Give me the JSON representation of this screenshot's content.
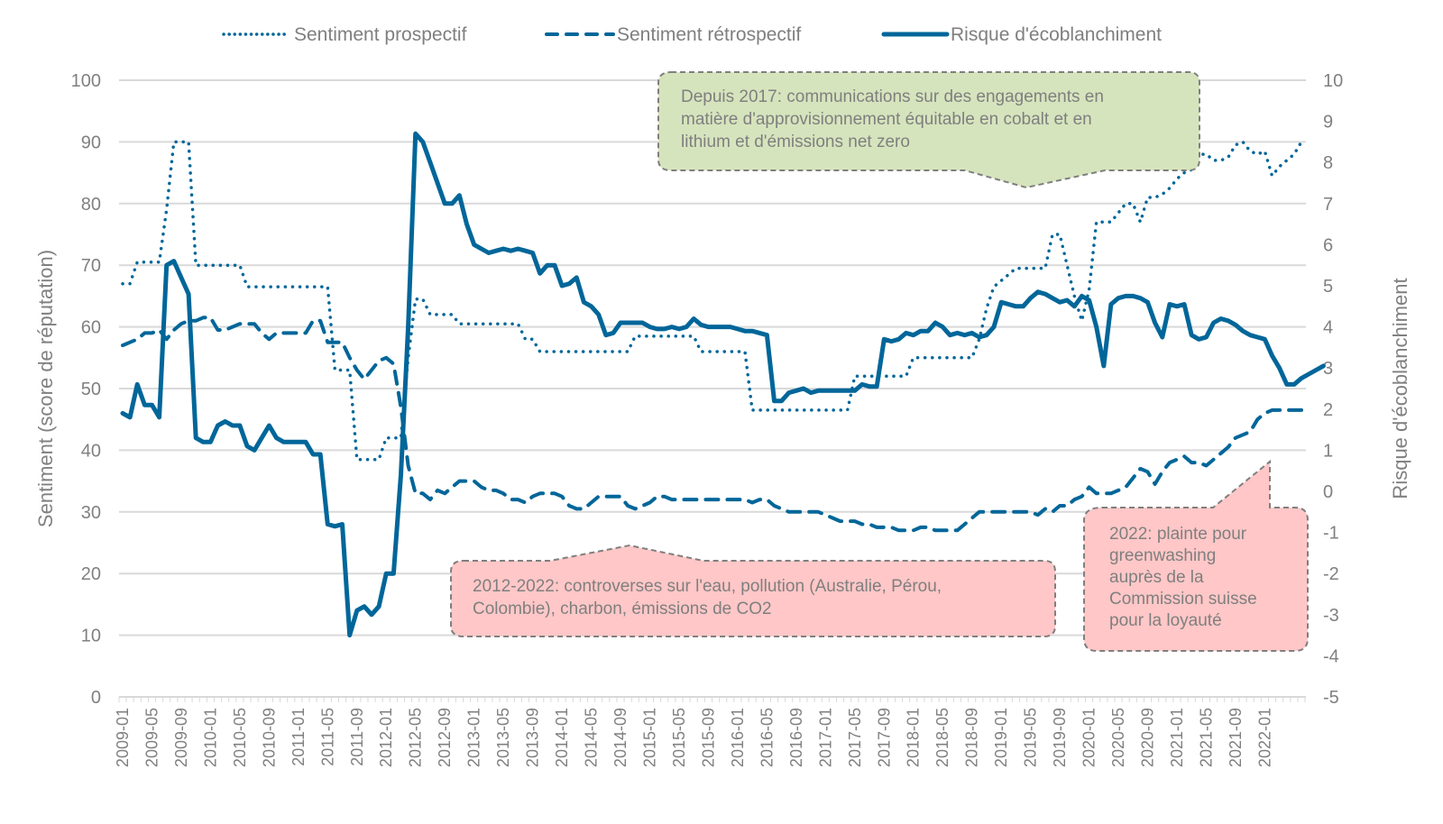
{
  "chart_data": {
    "type": "line",
    "title": "",
    "xlabel": "",
    "ylabel_left": "Sentiment (score de réputation)",
    "ylabel_right": "Risque d'écoblanchiment",
    "ylim_left": [
      0,
      100
    ],
    "ylim_right": [
      -5,
      10
    ],
    "yticks_left": [
      0,
      10,
      20,
      30,
      40,
      50,
      60,
      70,
      80,
      90,
      100
    ],
    "yticks_right": [
      -5,
      -4,
      -3,
      -2,
      -1,
      0,
      1,
      2,
      3,
      4,
      5,
      6,
      7,
      8,
      9,
      10
    ],
    "grid": true,
    "legend_position": "top",
    "x_start": "2009-01",
    "x_end": "2022-05",
    "x_tick_labels": [
      "2009-01",
      "2009-05",
      "2009-09",
      "2010-01",
      "2010-05",
      "2010-09",
      "2011-01",
      "2011-05",
      "2011-09",
      "2012-01",
      "2012-05",
      "2012-09",
      "2013-01",
      "2013-05",
      "2013-09",
      "2014-01",
      "2014-05",
      "2014-09",
      "2015-01",
      "2015-05",
      "2015-09",
      "2016-01",
      "2016-05",
      "2016-09",
      "2017-01",
      "2017-05",
      "2017-09",
      "2018-01",
      "2018-05",
      "2018-09",
      "2019-01",
      "2019-05",
      "2019-09",
      "2020-01",
      "2020-05",
      "2020-09",
      "2021-01",
      "2021-05",
      "2021-09",
      "2022-01"
    ],
    "series": [
      {
        "name": "Sentiment prospectif",
        "axis": "left",
        "style": "dotted",
        "color": "#006699",
        "values": [
          67,
          67,
          70.5,
          70.5,
          70.5,
          70.5,
          79,
          90,
          90,
          90,
          70,
          70,
          70,
          70,
          70,
          70,
          70,
          66.5,
          66.5,
          66.5,
          66.5,
          66.5,
          66.5,
          66.5,
          66.5,
          66.5,
          66.5,
          66.5,
          66.5,
          53,
          53,
          53,
          38.5,
          38.5,
          38.5,
          38.5,
          42,
          42,
          42,
          55,
          64.5,
          64.5,
          62,
          62,
          62,
          62,
          60.5,
          60.5,
          60.5,
          60.5,
          60.5,
          60.5,
          60.5,
          60.5,
          60.5,
          58,
          58,
          56,
          56,
          56,
          56,
          56,
          56,
          56,
          56,
          56,
          56,
          56,
          56,
          56,
          58.5,
          58.5,
          58.5,
          58.5,
          58.5,
          58.5,
          58.5,
          58.5,
          58.5,
          56,
          56,
          56,
          56,
          56,
          56,
          56,
          46.5,
          46.5,
          46.5,
          46.5,
          46.5,
          46.5,
          46.5,
          46.5,
          46.5,
          46.5,
          46.5,
          46.5,
          46.5,
          46.5,
          52,
          52,
          52,
          52,
          52,
          52,
          52,
          52,
          55,
          55,
          55,
          55,
          55,
          55,
          55,
          55,
          55,
          58,
          63,
          66.5,
          67.5,
          68.5,
          69.5,
          69.5,
          69.5,
          69.5,
          69.5,
          75,
          75,
          70,
          65,
          61,
          66,
          77,
          77,
          77,
          78.5,
          80,
          80,
          77,
          81,
          81,
          81.5,
          82.5,
          84,
          85,
          85.5,
          88,
          88,
          87,
          87,
          87.5,
          89.5,
          90,
          88.5,
          88,
          88.5,
          84.5,
          86,
          87,
          88,
          90
        ]
      },
      {
        "name": "Sentiment rétrospectif",
        "axis": "left",
        "style": "dashed",
        "color": "#006699",
        "values": [
          57,
          57.5,
          58,
          59,
          59,
          59.5,
          58,
          59.5,
          60.5,
          61,
          61,
          61.5,
          61.5,
          59.5,
          59.5,
          60,
          60.5,
          60.5,
          60.5,
          59,
          58,
          59,
          59,
          59,
          59,
          59,
          61,
          61,
          57.5,
          57.5,
          57.5,
          55,
          53,
          51.5,
          53,
          54.5,
          55,
          54,
          47,
          37.5,
          33,
          33,
          32,
          33.5,
          33,
          34,
          35,
          35,
          35,
          34,
          33.5,
          33.5,
          33,
          32,
          32,
          31.5,
          32.5,
          33,
          33,
          33,
          32.5,
          31,
          30.5,
          30.5,
          31.5,
          32.5,
          32.5,
          32.5,
          32.5,
          31,
          30.5,
          31,
          31.5,
          32.5,
          32.5,
          32,
          32,
          32,
          32,
          32,
          32,
          32,
          32,
          32,
          32,
          32,
          31.5,
          32,
          32,
          31,
          30.5,
          30,
          30,
          30,
          30,
          30,
          29.5,
          29,
          28.5,
          28.5,
          28.5,
          28,
          28,
          27.5,
          27.5,
          27.5,
          27,
          27,
          27,
          27.5,
          27.5,
          27,
          27,
          27,
          27,
          28,
          29,
          30,
          30,
          30,
          30,
          30,
          30,
          30,
          30,
          29.5,
          30.5,
          30,
          31,
          31,
          32,
          32.5,
          34,
          33,
          33,
          33,
          33.5,
          34,
          35.5,
          37,
          36.5,
          34.5,
          36.5,
          38,
          38.5,
          39,
          38,
          38,
          37.5,
          38.5,
          39.5,
          40.5,
          42,
          42.5,
          43,
          45,
          46,
          46.5,
          46.5,
          46.5,
          46.5,
          46.5
        ]
      },
      {
        "name": "Risque d'écoblanchiment",
        "axis": "right",
        "style": "solid",
        "color": "#006699",
        "values": [
          1.9,
          1.8,
          2.6,
          2.1,
          2.1,
          1.8,
          5.5,
          5.6,
          5.2,
          4.8,
          1.3,
          1.2,
          1.2,
          1.6,
          1.7,
          1.6,
          1.6,
          1.1,
          1.0,
          1.3,
          1.6,
          1.3,
          1.2,
          1.2,
          1.2,
          1.2,
          0.9,
          0.9,
          -0.8,
          -0.85,
          -0.8,
          -3.5,
          -2.9,
          -2.8,
          -3.0,
          -2.8,
          -2.0,
          -2.0,
          0.4,
          4.0,
          8.7,
          8.5,
          8.0,
          7.5,
          7.0,
          7.0,
          7.2,
          6.5,
          6.0,
          5.9,
          5.8,
          5.85,
          5.9,
          5.85,
          5.9,
          5.85,
          5.8,
          5.3,
          5.5,
          5.5,
          5.0,
          5.05,
          5.2,
          4.6,
          4.5,
          4.3,
          3.8,
          3.85,
          4.1,
          4.1,
          4.1,
          4.1,
          4.0,
          3.95,
          3.95,
          4.0,
          3.95,
          4.0,
          4.2,
          4.05,
          4.0,
          4.0,
          4.0,
          4.0,
          3.95,
          3.9,
          3.9,
          3.85,
          3.8,
          2.2,
          2.2,
          2.4,
          2.45,
          2.5,
          2.4,
          2.45,
          2.45,
          2.45,
          2.45,
          2.45,
          2.45,
          2.6,
          2.55,
          2.55,
          3.7,
          3.65,
          3.7,
          3.85,
          3.8,
          3.9,
          3.9,
          4.1,
          4.0,
          3.8,
          3.85,
          3.8,
          3.85,
          3.75,
          3.8,
          4.0,
          4.6,
          4.55,
          4.5,
          4.5,
          4.7,
          4.85,
          4.8,
          4.7,
          4.6,
          4.65,
          4.5,
          4.75,
          4.65,
          4.0,
          3.05,
          4.55,
          4.7,
          4.75,
          4.75,
          4.7,
          4.6,
          4.1,
          3.75,
          4.55,
          4.5,
          4.55,
          3.8,
          3.7,
          3.75,
          4.1,
          4.2,
          4.15,
          4.05,
          3.9,
          3.8,
          3.75,
          3.7,
          3.3,
          3.0,
          2.6,
          2.6,
          2.75,
          2.85,
          2.95,
          3.05
        ]
      }
    ],
    "annotations": [
      {
        "id": "green",
        "lines": [
          "Depuis 2017: communications sur des engagements en",
          "matière d'approvisionnement équitable en cobalt et en",
          "lithium et d'émissions net zero"
        ],
        "fill": "#d6e4bd"
      },
      {
        "id": "pink-wide",
        "lines": [
          "2012-2022: controverses sur l'eau, pollution (Australie, Pérou,",
          "Colombie), charbon, émissions de CO2"
        ],
        "fill": "#ffc7c7"
      },
      {
        "id": "pink-narrow",
        "lines": [
          "2022: plainte pour",
          "greenwashing",
          "auprès de la",
          "Commission suisse",
          "pour la loyauté"
        ],
        "fill": "#ffc7c7"
      }
    ]
  }
}
